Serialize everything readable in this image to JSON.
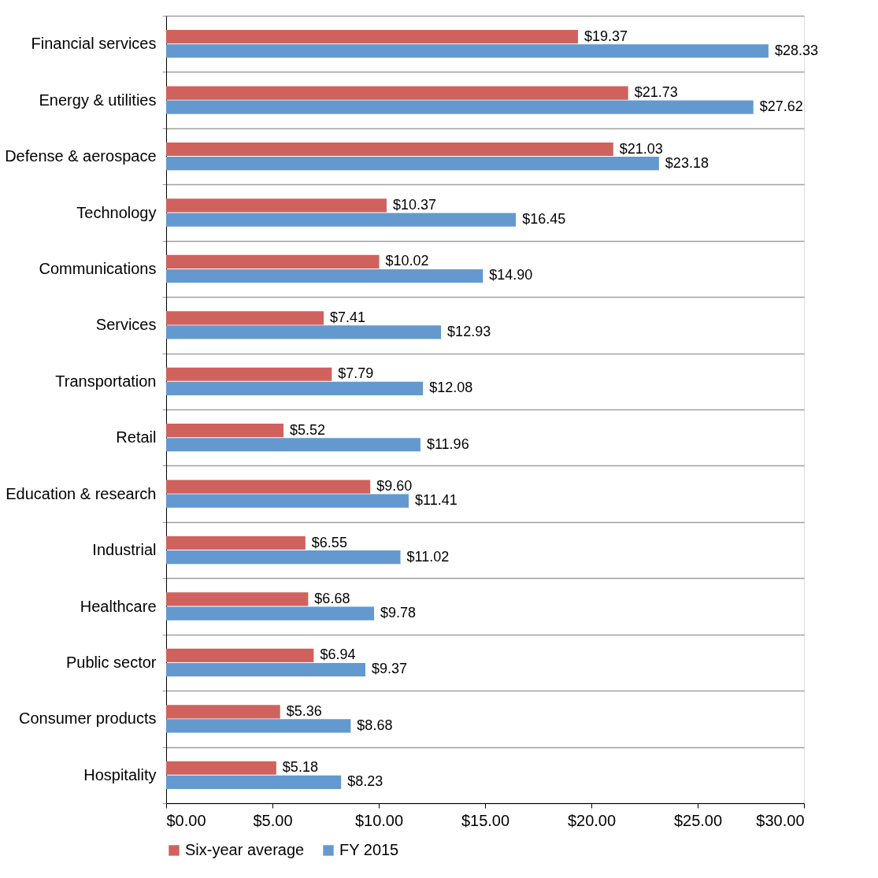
{
  "chart_data": {
    "type": "bar",
    "orientation": "horizontal",
    "categories": [
      "Financial services",
      "Energy & utilities",
      "Defense & aerospace",
      "Technology",
      "Communications",
      "Services",
      "Transportation",
      "Retail",
      "Education & research",
      "Industrial",
      "Healthcare",
      "Public sector",
      "Consumer products",
      "Hospitality"
    ],
    "series": [
      {
        "name": "Six-year average",
        "color": "#d0625e",
        "values": [
          19.37,
          21.73,
          21.03,
          10.37,
          10.02,
          7.41,
          7.79,
          5.52,
          9.6,
          6.55,
          6.68,
          6.94,
          5.36,
          5.18
        ],
        "value_labels": [
          "$19.37",
          "$21.73",
          "$21.03",
          "$10.37",
          "$10.02",
          "$7.41",
          "$7.79",
          "$5.52",
          "$9.60",
          "$6.55",
          "$6.68",
          "$6.94",
          "$5.36",
          "$5.18"
        ]
      },
      {
        "name": "FY 2015",
        "color": "#6399cf",
        "values": [
          28.33,
          27.62,
          23.18,
          16.45,
          14.9,
          12.93,
          12.08,
          11.96,
          11.41,
          11.02,
          9.78,
          9.37,
          8.68,
          8.23
        ],
        "value_labels": [
          "$28.33",
          "$27.62",
          "$23.18",
          "$16.45",
          "$14.90",
          "$12.93",
          "$12.08",
          "$11.96",
          "$11.41",
          "$11.02",
          "$9.78",
          "$9.37",
          "$8.68",
          "$8.23"
        ]
      }
    ],
    "xlim": [
      0,
      30
    ],
    "xticks": [
      {
        "value": 0,
        "label": "$0.00"
      },
      {
        "value": 5,
        "label": "$5.00"
      },
      {
        "value": 10,
        "label": "$10.00"
      },
      {
        "value": 15,
        "label": "$15.00"
      },
      {
        "value": 20,
        "label": "$20.00"
      },
      {
        "value": 25,
        "label": "$25.00"
      },
      {
        "value": 30,
        "label": "$30.00"
      }
    ],
    "grid": "y",
    "legend": "bottom"
  }
}
